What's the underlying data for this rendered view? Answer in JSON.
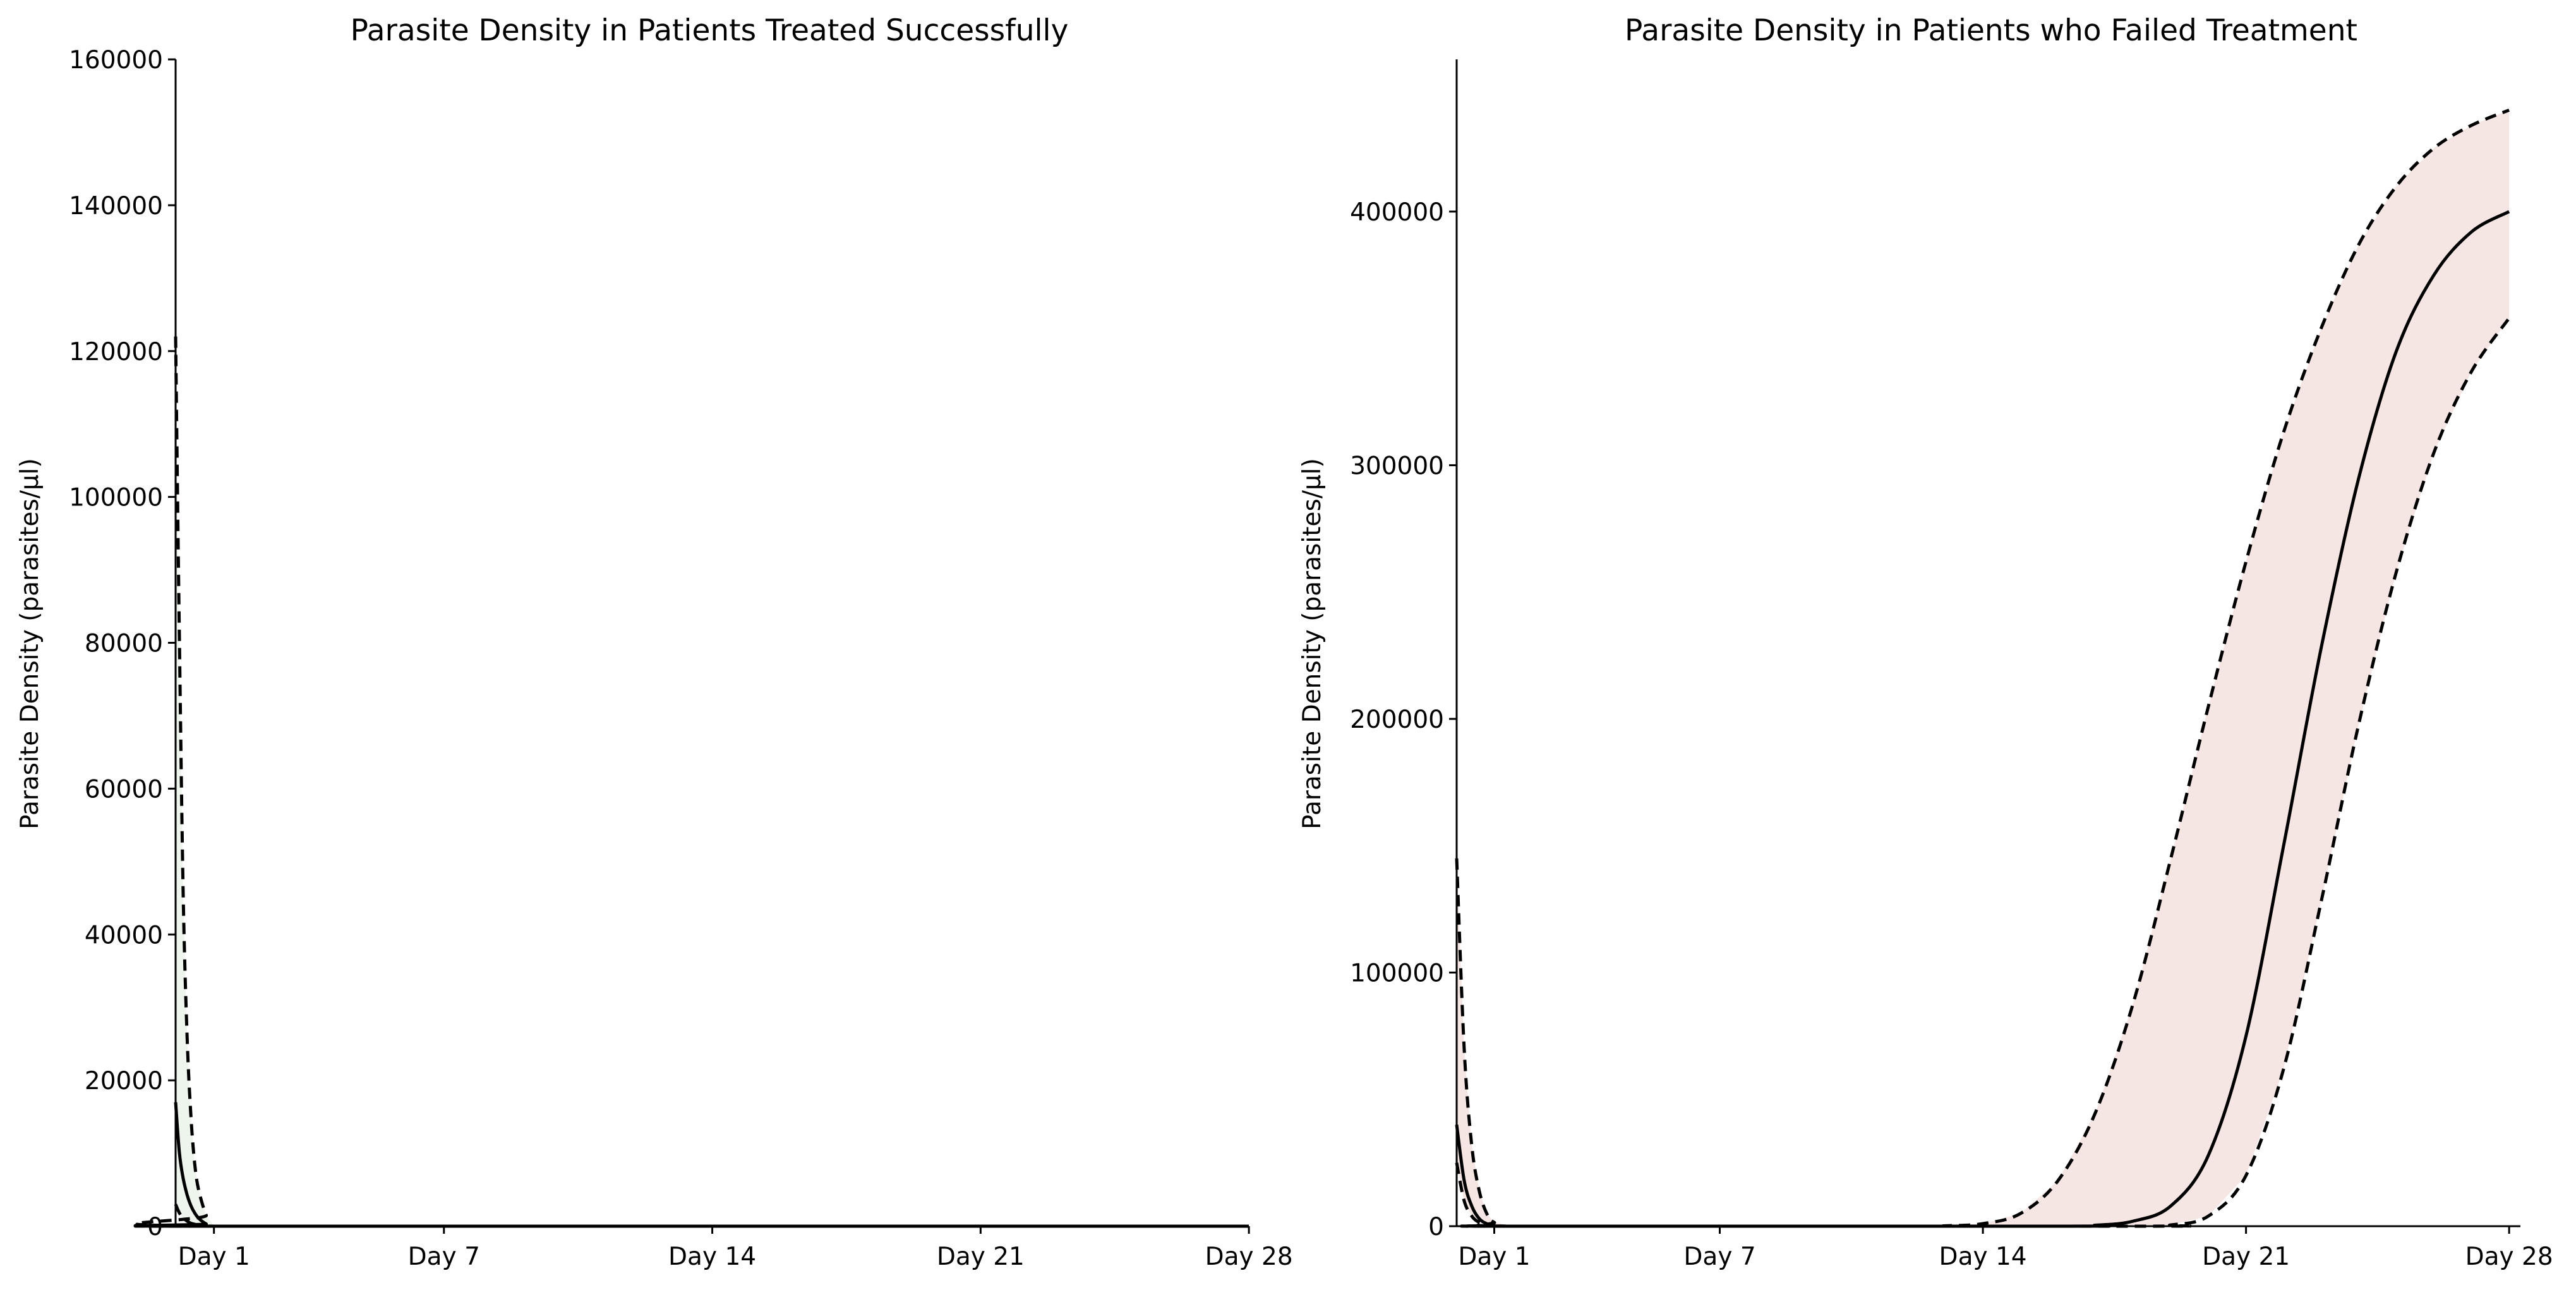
{
  "chart_data": [
    {
      "type": "line",
      "title": "Parasite Density in Patients Treated Successfully",
      "ylabel": "Parasite Density (parasites/μl)",
      "xlabel": "",
      "xlim": [
        0,
        27.8
      ],
      "ylim": [
        0,
        160000
      ],
      "x_ticks": [
        {
          "value": 1,
          "label": "Day 1"
        },
        {
          "value": 7,
          "label": "Day 7"
        },
        {
          "value": 14,
          "label": "Day 14"
        },
        {
          "value": 21,
          "label": "Day 21"
        },
        {
          "value": 28,
          "label": "Day 28"
        }
      ],
      "y_ticks": [
        0,
        20000,
        40000,
        60000,
        80000,
        100000,
        120000,
        140000,
        160000
      ],
      "ci_fill_color": "#eef5ec",
      "series": [
        {
          "role": "upper",
          "style": "dashed",
          "x": [
            0,
            0.1,
            0.2,
            0.3,
            0.4,
            0.5,
            0.6,
            0.8,
            1.0,
            28
          ],
          "y": [
            122000,
            80000,
            45000,
            26000,
            15000,
            8500,
            5000,
            1500,
            0,
            0
          ]
        },
        {
          "role": "mean",
          "style": "solid",
          "x": [
            0,
            0.1,
            0.2,
            0.3,
            0.4,
            0.5,
            0.6,
            0.8,
            1.0,
            28
          ],
          "y": [
            17000,
            10000,
            6500,
            4300,
            2800,
            1800,
            1100,
            300,
            0,
            0
          ]
        },
        {
          "role": "lower",
          "style": "dashed",
          "x": [
            0,
            0.1,
            0.2,
            0.3,
            0.4,
            0.6,
            0.8,
            1.0,
            28
          ],
          "y": [
            3000,
            1800,
            1100,
            700,
            400,
            150,
            50,
            0,
            0
          ]
        }
      ]
    },
    {
      "type": "line",
      "title": "Parasite Density in Patients who Failed Treatment",
      "ylabel": "Parasite Density (parasites/μl)",
      "xlabel": "",
      "xlim": [
        0,
        28.3
      ],
      "ylim": [
        0,
        460000
      ],
      "x_ticks": [
        {
          "value": 1,
          "label": "Day 1"
        },
        {
          "value": 7,
          "label": "Day 7"
        },
        {
          "value": 14,
          "label": "Day 14"
        },
        {
          "value": 21,
          "label": "Day 21"
        },
        {
          "value": 28,
          "label": "Day 28"
        }
      ],
      "y_ticks": [
        0,
        100000,
        200000,
        300000,
        400000
      ],
      "ci_fill_color": "#f5e6e4",
      "series": [
        {
          "role": "upper",
          "style": "dashed",
          "x": [
            0,
            0.2,
            0.4,
            0.6,
            0.8,
            1.0,
            1.5,
            12,
            13,
            14,
            15,
            16,
            17,
            18,
            19,
            20,
            21,
            22,
            23,
            24,
            25,
            26,
            27,
            28
          ],
          "y": [
            145000,
            70000,
            32000,
            14000,
            5000,
            1500,
            0,
            0,
            150,
            1000,
            5000,
            18000,
            45000,
            88000,
            145000,
            205000,
            262000,
            313000,
            354000,
            387000,
            410000,
            425000,
            434000,
            440000
          ]
        },
        {
          "role": "mean",
          "style": "solid",
          "x": [
            0,
            0.2,
            0.4,
            0.6,
            0.8,
            1.0,
            1.5,
            16,
            17,
            18,
            19,
            20,
            21,
            22,
            23,
            24,
            25,
            26,
            27,
            28
          ],
          "y": [
            40000,
            18000,
            8000,
            3000,
            1000,
            300,
            0,
            0,
            400,
            2000,
            8000,
            28000,
            75000,
            150000,
            228000,
            295000,
            345000,
            375000,
            392000,
            400000
          ]
        },
        {
          "role": "lower",
          "style": "dashed",
          "x": [
            0,
            0.2,
            0.4,
            0.6,
            0.8,
            1.0,
            1.5,
            18,
            19,
            20,
            21,
            22,
            23,
            24,
            25,
            26,
            27,
            28
          ],
          "y": [
            25000,
            10000,
            4000,
            1500,
            500,
            100,
            0,
            0,
            500,
            4000,
            20000,
            62000,
            128000,
            198000,
            258000,
            305000,
            337000,
            358000
          ]
        }
      ]
    }
  ]
}
